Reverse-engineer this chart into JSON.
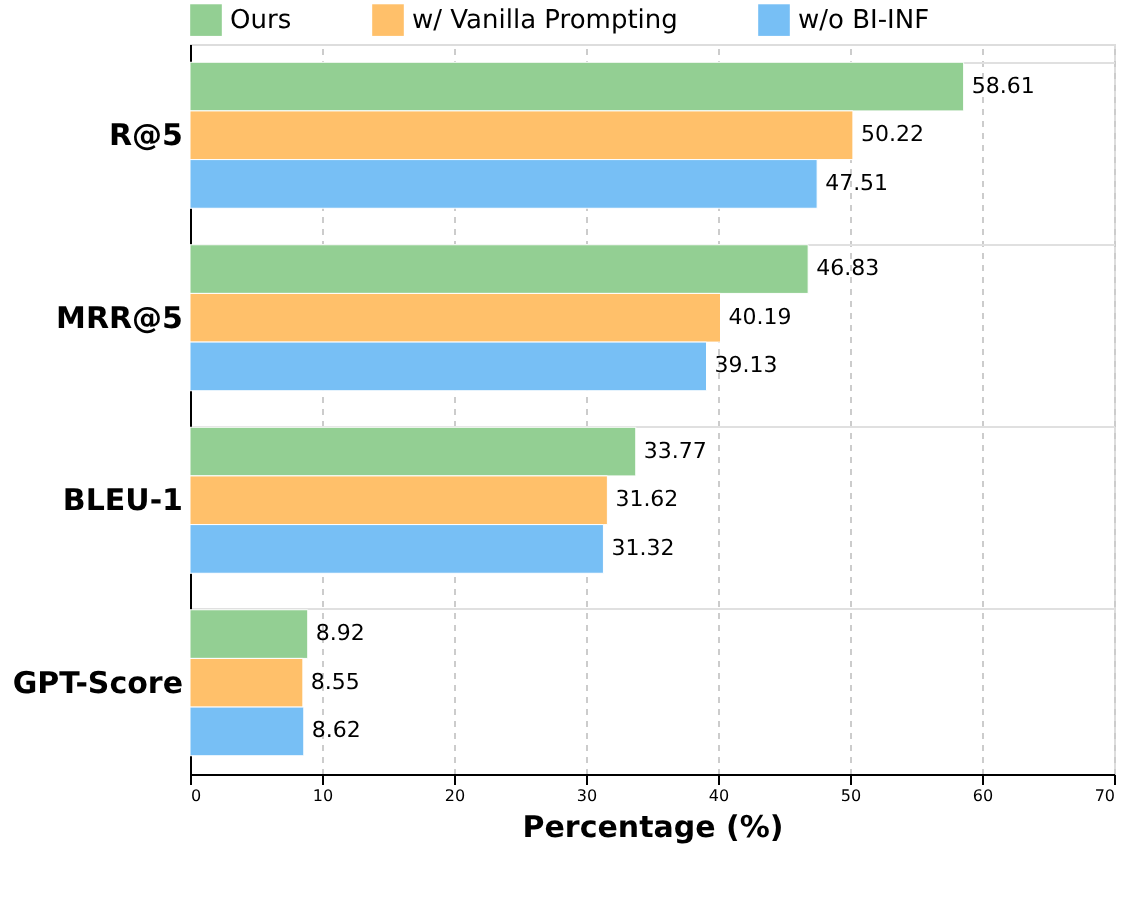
{
  "chart_data": {
    "type": "bar",
    "orientation": "horizontal",
    "xlabel": "Percentage (%)",
    "categories": [
      "R@5",
      "MRR@5",
      "BLEU-1",
      "GPT-Score"
    ],
    "series": [
      {
        "name": "Ours",
        "color": "#93cf93",
        "values": [
          58.61,
          46.83,
          33.77,
          8.92
        ]
      },
      {
        "name": "w/ Vanilla Prompting",
        "color": "#ffc06a",
        "values": [
          50.22,
          40.19,
          31.62,
          8.55
        ]
      },
      {
        "name": "w/o BI-INF",
        "color": "#77bff5",
        "values": [
          47.51,
          39.13,
          31.32,
          8.62
        ]
      }
    ],
    "xlim": [
      0,
      70
    ],
    "xticks": [
      0,
      10,
      20,
      30,
      40,
      50,
      60,
      70
    ],
    "grid": true,
    "legend": "top",
    "data_labels": true
  }
}
